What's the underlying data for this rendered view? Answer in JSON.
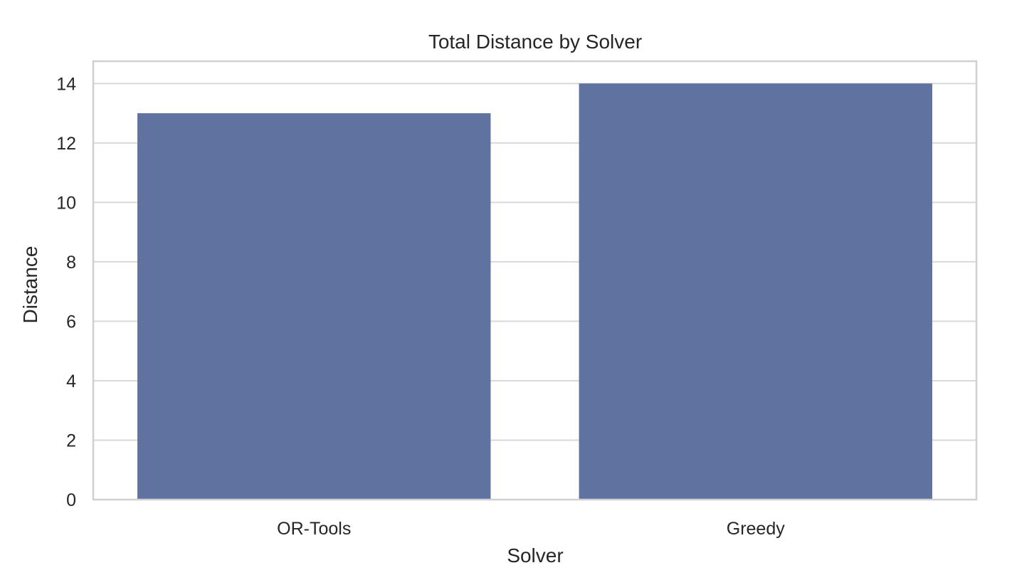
{
  "chart_data": {
    "type": "bar",
    "title": "Total Distance by Solver",
    "xlabel": "Solver",
    "ylabel": "Distance",
    "categories": [
      "OR-Tools",
      "Greedy"
    ],
    "values": [
      13,
      14
    ],
    "ylim": [
      0,
      14.75
    ],
    "yticks": [
      0,
      2,
      4,
      6,
      8,
      10,
      12,
      14
    ],
    "grid": true,
    "legend": "none",
    "colors": {
      "bar": "#5f72a0",
      "grid": "#d9d9d9",
      "frame": "#d0d0d0",
      "text": "#262626"
    }
  }
}
